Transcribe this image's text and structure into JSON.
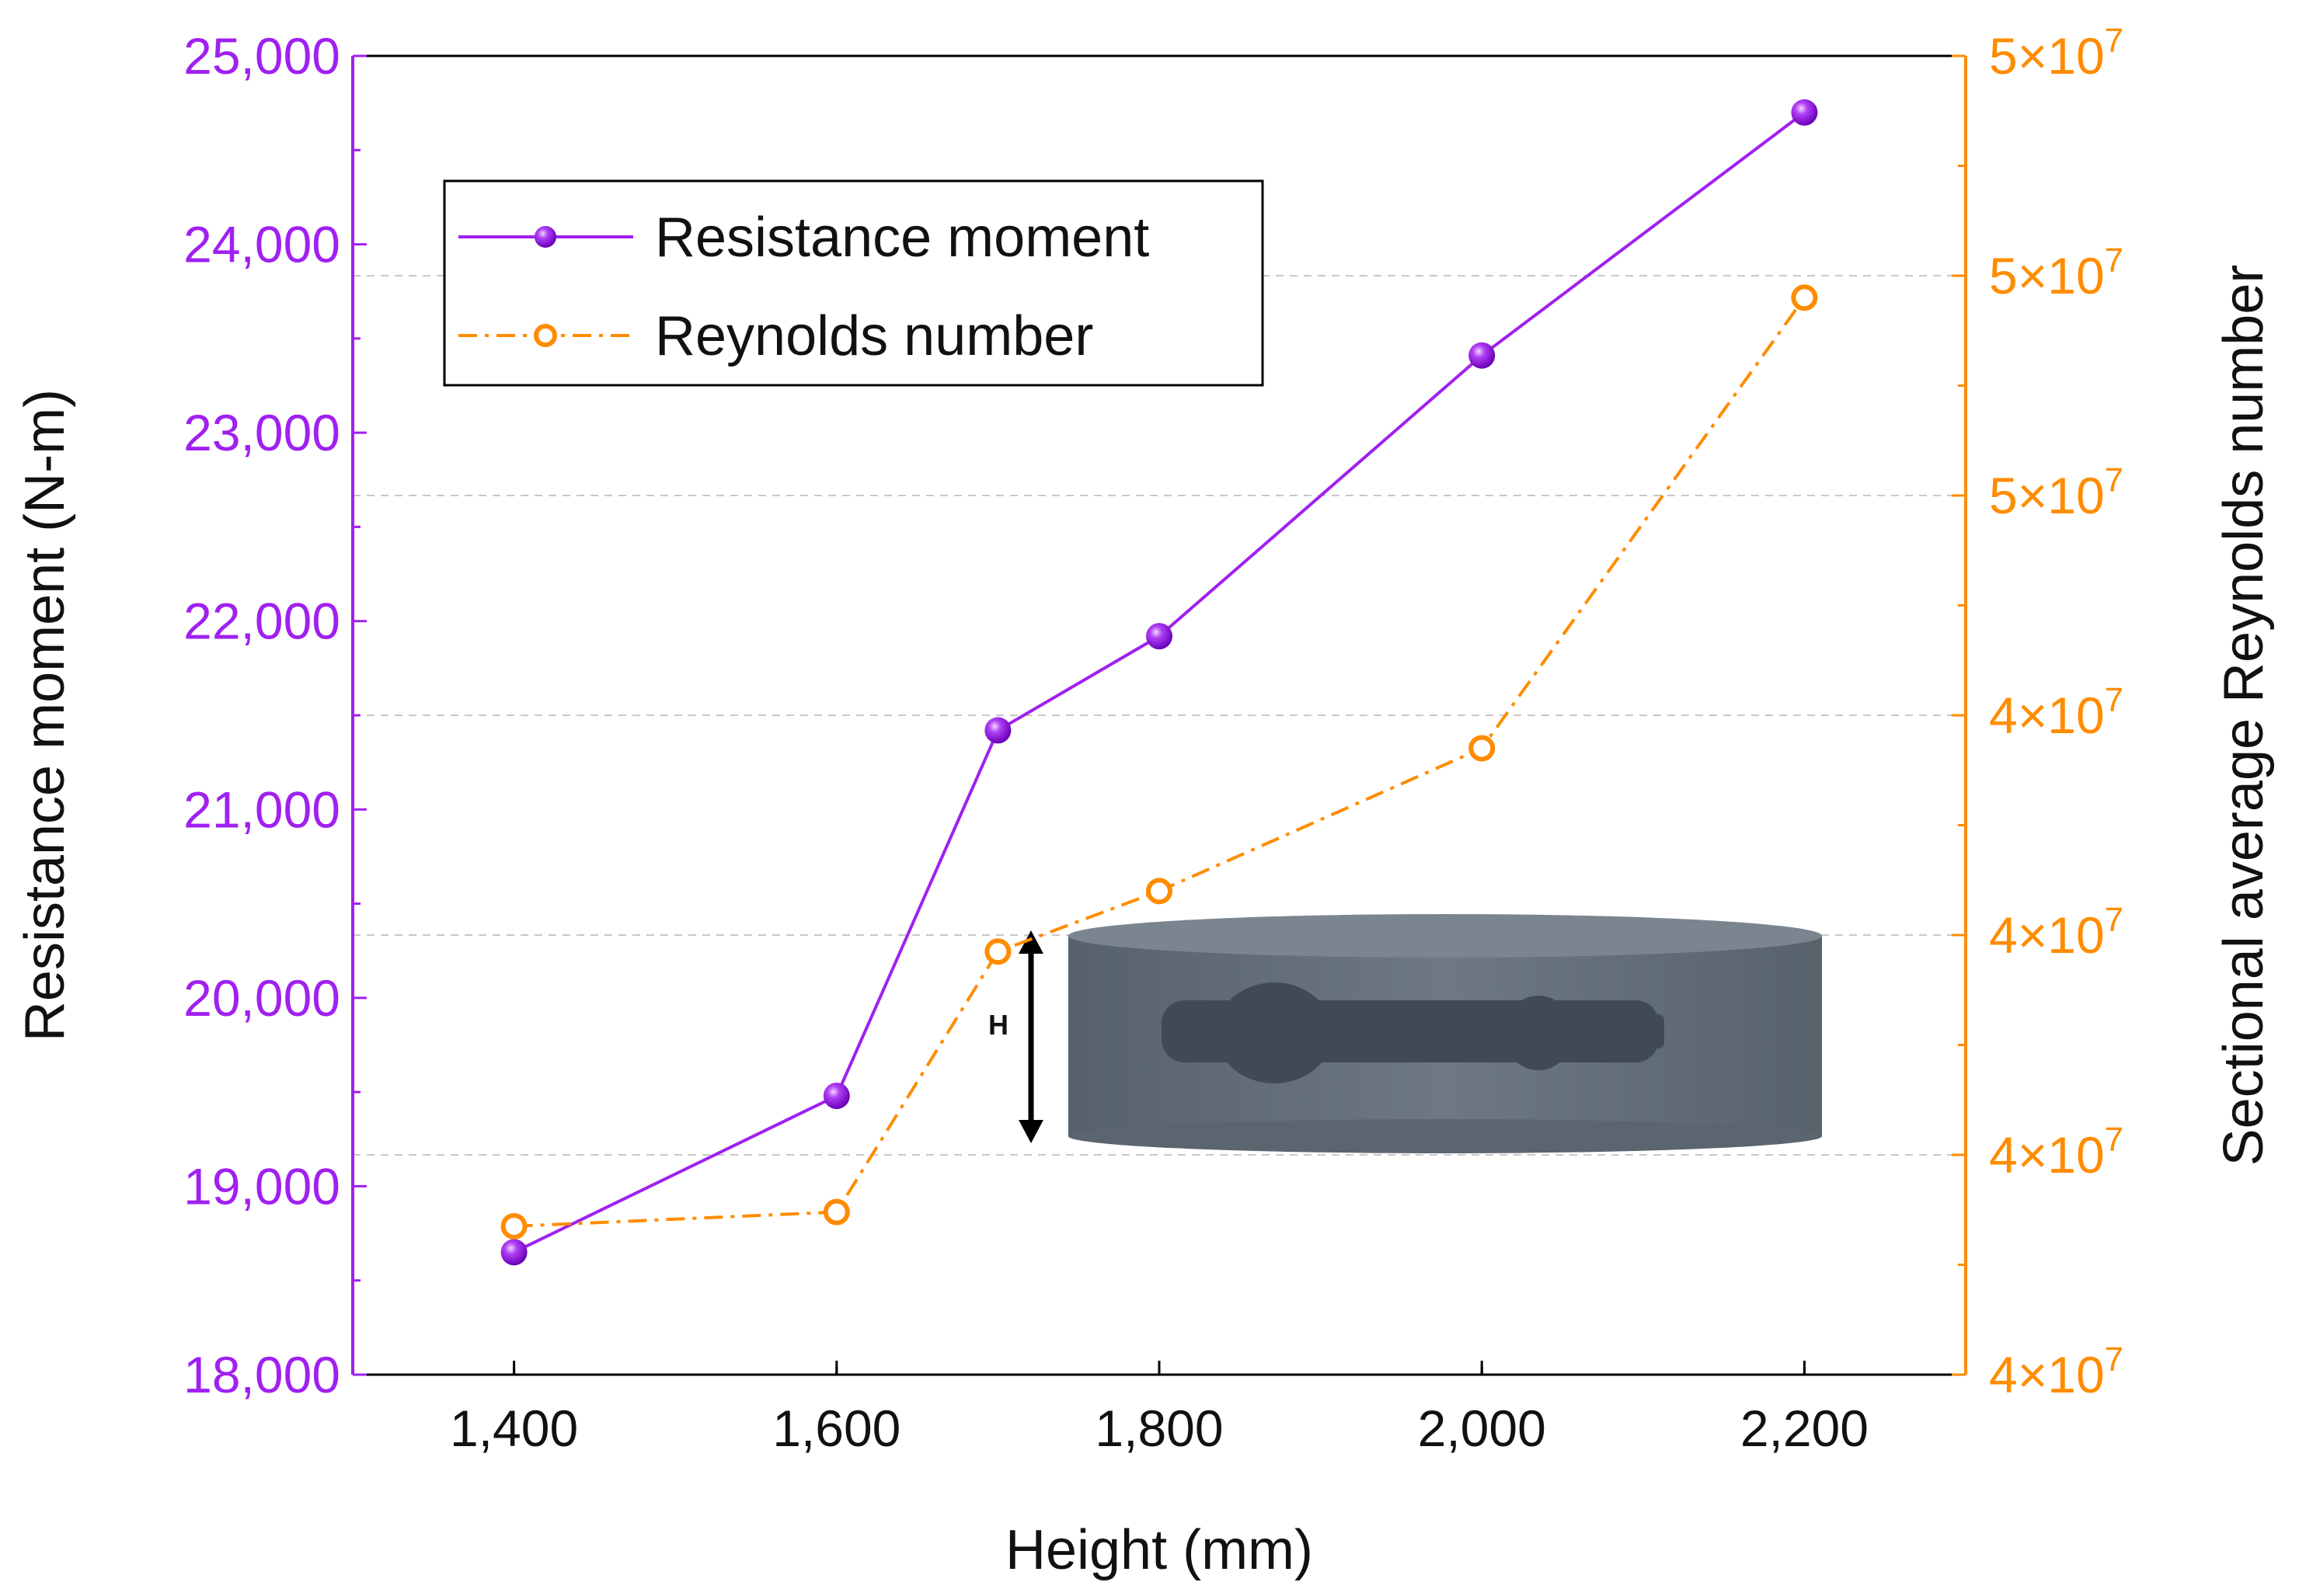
{
  "chart_data": {
    "type": "line",
    "x": [
      1400,
      1600,
      1700,
      1800,
      2000,
      2200
    ],
    "xlabel": "Height (mm)",
    "ylabel_left": "Resistance moment (N-m)",
    "ylabel_right": "Sectional average Reynolds number",
    "xlim": [
      1300,
      2300
    ],
    "ylim_left": [
      18000,
      25000
    ],
    "ylim_right": [
      40000000,
      52000000
    ],
    "x_ticks": [
      1400,
      1600,
      1800,
      2000,
      2200
    ],
    "x_tick_labels": [
      "1,400",
      "1,600",
      "1,800",
      "2,000",
      "2,200"
    ],
    "y_left_ticks": [
      18000,
      19000,
      20000,
      21000,
      22000,
      23000,
      24000,
      25000
    ],
    "y_left_tick_labels": [
      "18,000",
      "19,000",
      "20,000",
      "21,000",
      "22,000",
      "23,000",
      "24,000",
      "25,000"
    ],
    "y_right_ticks": [
      40000000,
      42000000,
      44000000,
      46000000,
      48000000,
      50000000,
      52000000
    ],
    "y_right_tick_labels": [
      "4×10",
      "4×10",
      "4×10",
      "4×10",
      "5×10",
      "5×10",
      "5×10"
    ],
    "y_right_tick_exponent": "7",
    "grid": "horizontal dashed at right-axis ticks",
    "legend_position": "top-left",
    "series": [
      {
        "name": "Resistance moment",
        "axis": "left",
        "color": "#a020f0",
        "style": "solid",
        "marker": "filled-circle",
        "values": [
          18650,
          19480,
          21420,
          21920,
          23410,
          24700
        ]
      },
      {
        "name": "Reynolds number",
        "axis": "right",
        "color": "#ff8c00",
        "style": "dash-dot",
        "marker": "open-circle",
        "values": [
          41350000,
          41480000,
          43850000,
          44400000,
          45700000,
          49800000
        ]
      }
    ],
    "inset": {
      "label": "H"
    }
  }
}
